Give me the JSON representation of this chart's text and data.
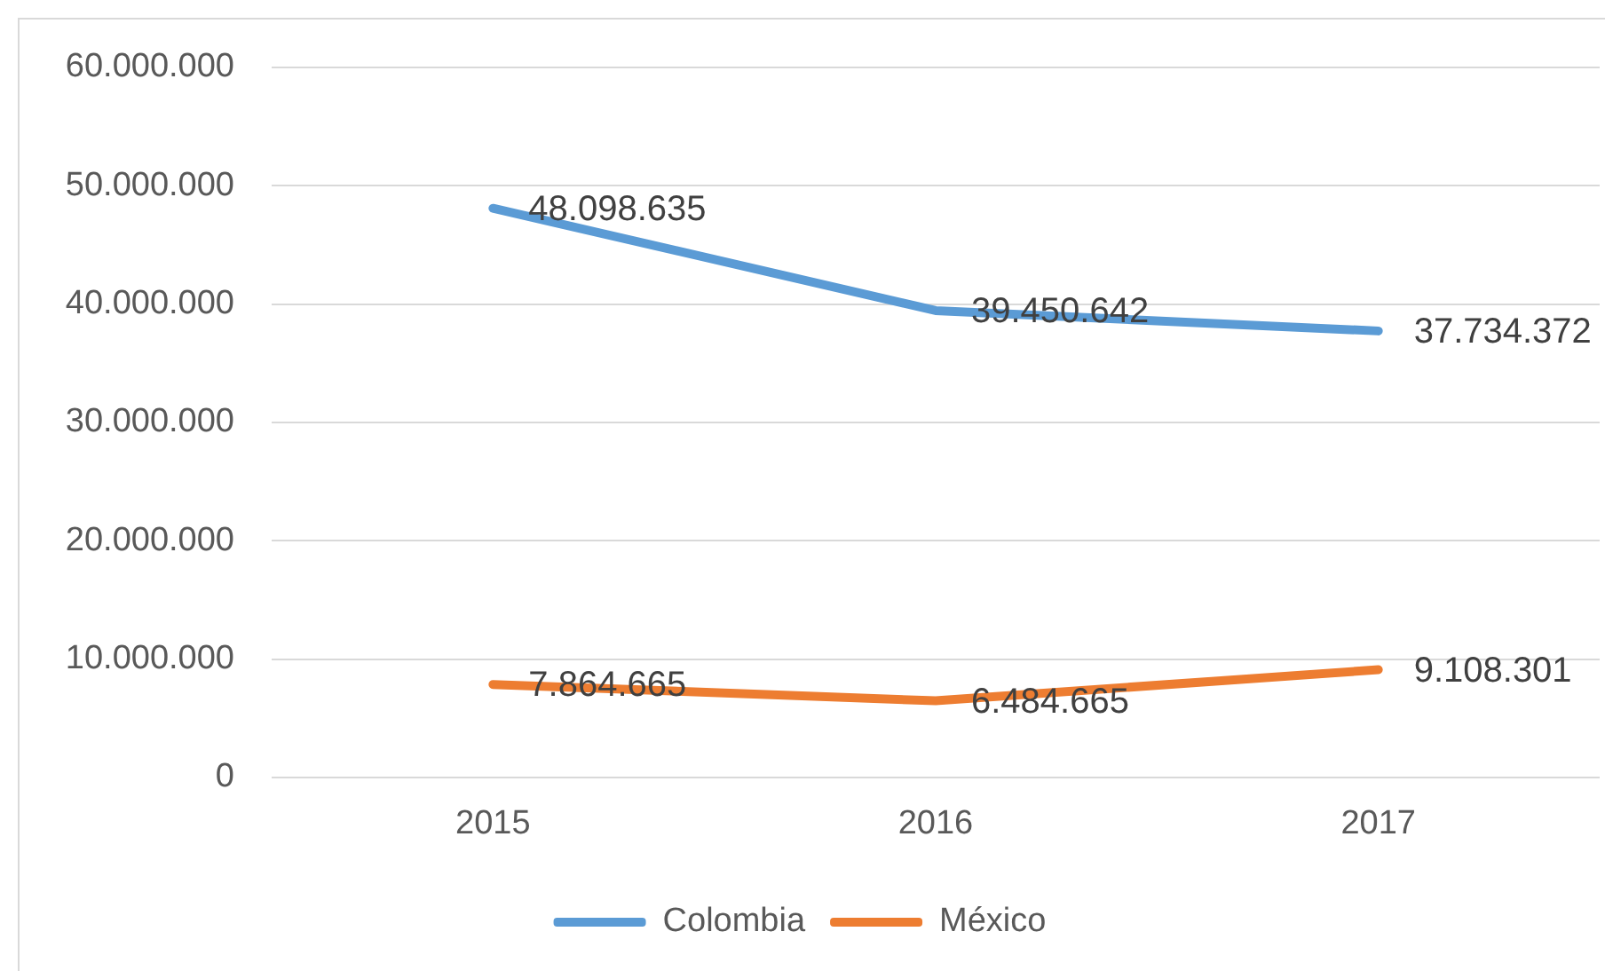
{
  "chart_data": {
    "type": "line",
    "categories": [
      "2015",
      "2016",
      "2017"
    ],
    "series": [
      {
        "name": "Colombia",
        "color": "#5b9bd5",
        "values": [
          48098635,
          39450642,
          37734372
        ],
        "value_labels": [
          "48.098.635",
          "39.450.642",
          "37.734.372"
        ]
      },
      {
        "name": "México",
        "color": "#ed7d31",
        "values": [
          7864665,
          6484665,
          9108301
        ],
        "value_labels": [
          "7.864.665",
          "6.484.665",
          "9.108.301"
        ]
      }
    ],
    "ylim": [
      0,
      60000000
    ],
    "yticks": [
      0,
      {
        "value": 10000000,
        "label": "10.000.000"
      },
      {
        "value": 20000000,
        "label": "20.000.000"
      },
      {
        "value": 30000000,
        "label": "30.000.000"
      },
      {
        "value": 40000000,
        "label": "40.000.000"
      },
      {
        "value": 50000000,
        "label": "50.000.000"
      },
      {
        "value": 60000000,
        "label": "60.000.000"
      }
    ],
    "grid": "y",
    "legend": "bottom",
    "marker": "none",
    "line_style": "solid"
  }
}
